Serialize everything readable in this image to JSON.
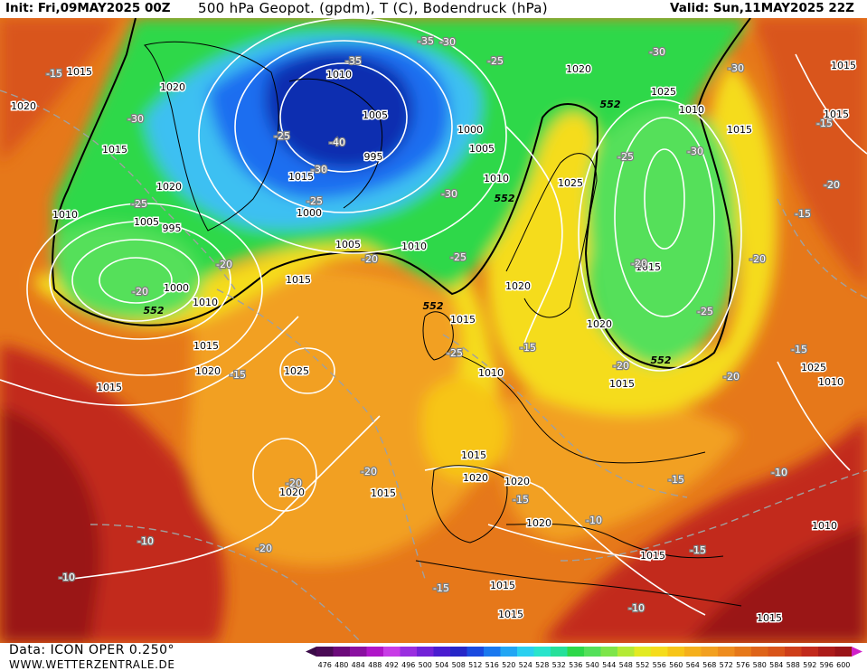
{
  "header": {
    "init": "Init: Fri,09MAY2025 00Z",
    "title": "500 hPa Geopot. (gpdm), T (C), Bodendruck (hPa)",
    "valid": "Valid: Sun,11MAY2025 22Z"
  },
  "footer": {
    "data_source": "Data: ICON OPER 0.250°",
    "website": "WWW.WETTERZENTRALE.DE"
  },
  "colors": {
    "low_dark": "#0a2fb0",
    "low_blue": "#1f6ef0",
    "low_cyan": "#3cc0f2",
    "green": "#2ed84a",
    "green_light": "#54e05a",
    "yellow": "#f5dc1c",
    "yellow_orange": "#f7c518",
    "orange": "#f2a020",
    "orange_dark": "#e6781a",
    "red_orange": "#d9541a",
    "red": "#c22a1c",
    "dark_red": "#9a1418"
  },
  "colorbar": {
    "ticks": [
      "476",
      "480",
      "484",
      "488",
      "492",
      "496",
      "500",
      "504",
      "508",
      "512",
      "516",
      "520",
      "524",
      "528",
      "532",
      "536",
      "540",
      "544",
      "548",
      "552",
      "556",
      "560",
      "564",
      "568",
      "572",
      "576",
      "580",
      "584",
      "588",
      "592",
      "596",
      "600"
    ],
    "colors": [
      "#4a0a55",
      "#6c0a7a",
      "#8a10a0",
      "#b016c8",
      "#c83ce6",
      "#9a2ee0",
      "#7222d8",
      "#4a1cd0",
      "#2626c8",
      "#1a4ae0",
      "#1a78ef",
      "#22a6f4",
      "#2ad0f0",
      "#28e4cc",
      "#26e09a",
      "#2ed84a",
      "#54e05a",
      "#7ee54a",
      "#b4ea36",
      "#e2ea22",
      "#f5dc1c",
      "#f7c518",
      "#f5b01c",
      "#f2a020",
      "#ee8c1e",
      "#e6781a",
      "#de641a",
      "#d9541a",
      "#ce3e1a",
      "#c22a1c",
      "#ac1c1a",
      "#9a1418"
    ]
  },
  "pressure_labels": [
    "1015",
    "1020",
    "1020",
    "1015",
    "1020",
    "1010",
    "1005",
    "995",
    "1000",
    "1010",
    "1015",
    "1020",
    "1015",
    "1010",
    "1005",
    "1000",
    "995",
    "1015",
    "1010",
    "1005",
    "1000",
    "1005",
    "1010",
    "1015",
    "1020",
    "1025",
    "1025",
    "1020",
    "1015",
    "1010",
    "1015",
    "1015",
    "1010",
    "1015",
    "1015",
    "1015",
    "1020",
    "1020",
    "1020",
    "1025",
    "1020",
    "1015",
    "1025",
    "1020",
    "1010",
    "1015",
    "1015",
    "1015",
    "1010",
    "1015",
    "1015",
    "1020"
  ],
  "temperature_labels": [
    "-15",
    "-30",
    "-25",
    "-35",
    "-35",
    "-30",
    "-25",
    "-30",
    "-30",
    "-40",
    "-30",
    "-25",
    "-20",
    "-25",
    "-30",
    "-25",
    "-20",
    "-15",
    "-20",
    "-15",
    "-25",
    "-30",
    "-25",
    "-20",
    "-15",
    "-20",
    "-25",
    "-15",
    "-20",
    "-20",
    "-20",
    "-20",
    "-15",
    "-10",
    "-15",
    "-20",
    "-20",
    "-10",
    "-15",
    "-15",
    "-10",
    "-15",
    "-10",
    "-10"
  ],
  "isoline_552_label": "552"
}
